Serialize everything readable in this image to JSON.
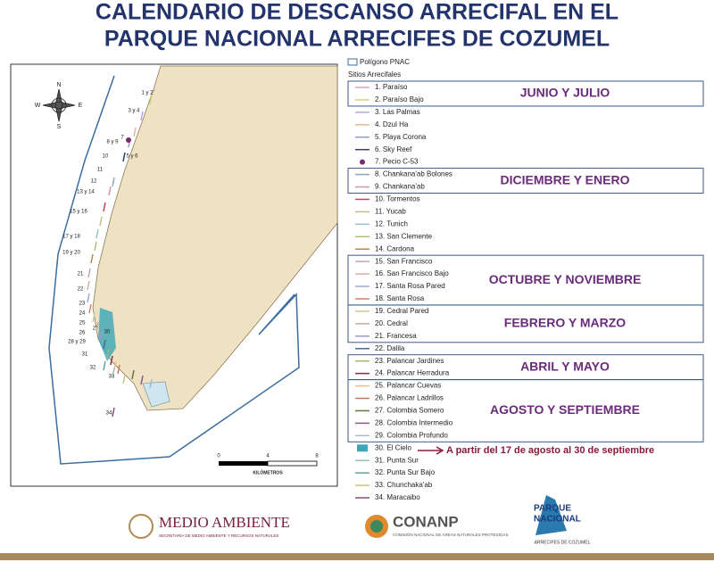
{
  "header": {
    "title_line_1": "CALENDARIO DE DESCANSO ARRECIFAL EN EL",
    "title_line_2": "PARQUE NACIONAL ARRECIFES DE COZUMEL"
  },
  "map": {
    "compass": [
      "N",
      "E",
      "S",
      "W"
    ],
    "scale": [
      "0",
      "4",
      "8"
    ],
    "scale_unit": "KILÓMETROS",
    "site_labels": [
      "1 y 2",
      "3 y 4",
      "7",
      "8 y 9",
      "5 y 6",
      "10",
      "11",
      "12",
      "13 y 14",
      "15 y 16",
      "17 y 18",
      "19 y 20",
      "21",
      "22",
      "23",
      "24",
      "25",
      "26",
      "27",
      "28 y 29",
      "30",
      "31",
      "32",
      "33",
      "34"
    ]
  },
  "legend": {
    "polygon": "Polígono PNAC",
    "subtitle": "Sitios Arrecifales",
    "items": [
      {
        "label": "1. Paraíso",
        "color": "#d6a3b7"
      },
      {
        "label": "2. Paraíso Bajo",
        "color": "#c9d97a"
      },
      {
        "label": "3. Las Palmas",
        "color": "#b9a6d8"
      },
      {
        "label": "4. Dzul Ha",
        "color": "#e4b896"
      },
      {
        "label": "5. Playa Corona",
        "color": "#8fa0c8"
      },
      {
        "label": "6. Sky Reef",
        "color": "#2f3f7a"
      },
      {
        "label": "7. Pecio C-53",
        "color": "#7a2a6a"
      },
      {
        "label": "8. Chankana'ab Bolones",
        "color": "#8aa8c0"
      },
      {
        "label": "9. Chankana'ab",
        "color": "#c99bb0"
      },
      {
        "label": "10. Tormentos",
        "color": "#c0475e"
      },
      {
        "label": "11. Yucab",
        "color": "#b8c48a"
      },
      {
        "label": "12. Tunich",
        "color": "#9cc0c8"
      },
      {
        "label": "13. San Clemente",
        "color": "#b0c070"
      },
      {
        "label": "14. Cardona",
        "color": "#b08a50"
      },
      {
        "label": "15. San Francisco",
        "color": "#c8a0b8"
      },
      {
        "label": "16. San Francisco Bajo",
        "color": "#d8b0a8"
      },
      {
        "label": "17. Santa Rosa Pared",
        "color": "#a0a8d0"
      },
      {
        "label": "18. Santa Rosa",
        "color": "#d88070"
      },
      {
        "label": "19. Cedral Pared",
        "color": "#c0d090"
      },
      {
        "label": "20. Cedral",
        "color": "#c8a8a0"
      },
      {
        "label": "21. Francesa",
        "color": "#a098c8"
      },
      {
        "label": "22. Dalila",
        "color": "#4a6a9a"
      },
      {
        "label": "23. Palancar Jardines",
        "color": "#a8b860"
      },
      {
        "label": "24. Palancar Herradura",
        "color": "#7a3050"
      },
      {
        "label": "25. Palancar Cuevas",
        "color": "#e0c090"
      },
      {
        "label": "26. Palancar Ladrillos",
        "color": "#c87858"
      },
      {
        "label": "27. Colombia Somero",
        "color": "#5a7a40"
      },
      {
        "label": "28. Colombia Intermedio",
        "color": "#8a5a8a"
      },
      {
        "label": "29. Colombia Profundo",
        "color": "#a8b8d8"
      },
      {
        "label": "30. El Cielo",
        "color": "#3aa8b8"
      },
      {
        "label": "31. Punta Sur",
        "color": "#98c0b8"
      },
      {
        "label": "32. Punta Sur Bajo",
        "color": "#6aa0a0"
      },
      {
        "label": "33. Chunchaka'ab",
        "color": "#d0c080"
      },
      {
        "label": "34. Maracaibo",
        "color": "#8a4a80"
      }
    ],
    "seasons": [
      {
        "label": "JUNIO Y JULIO",
        "first": 1,
        "last": 2
      },
      {
        "label": "DICIEMBRE Y ENERO",
        "first": 8,
        "last": 9
      },
      {
        "label": "OCTUBRE Y NOVIEMBRE",
        "first": 15,
        "last": 18
      },
      {
        "label": "FEBRERO Y MARZO",
        "first": 19,
        "last": 21
      },
      {
        "label": "ABRIL Y MAYO",
        "first": 23,
        "last": 24
      },
      {
        "label": "AGOSTO Y SEPTIEMBRE",
        "first": 25,
        "last": 29
      }
    ],
    "note": "A partir del 17 de agosto al 30 de septiembre"
  },
  "footer": {
    "semarnat": "MEDIO AMBIENTE",
    "semarnat_sub": "SECRETARÍA DE MEDIO AMBIENTE Y RECURSOS NATURALES",
    "conanp": "CONANP",
    "conanp_sub": "COMISIÓN NACIONAL DE ÁREAS NATURALES PROTEGIDAS",
    "park_1": "PARQUE",
    "park_2": "NACIONAL",
    "park_3": "ARRECIFES DE COZUMEL"
  }
}
